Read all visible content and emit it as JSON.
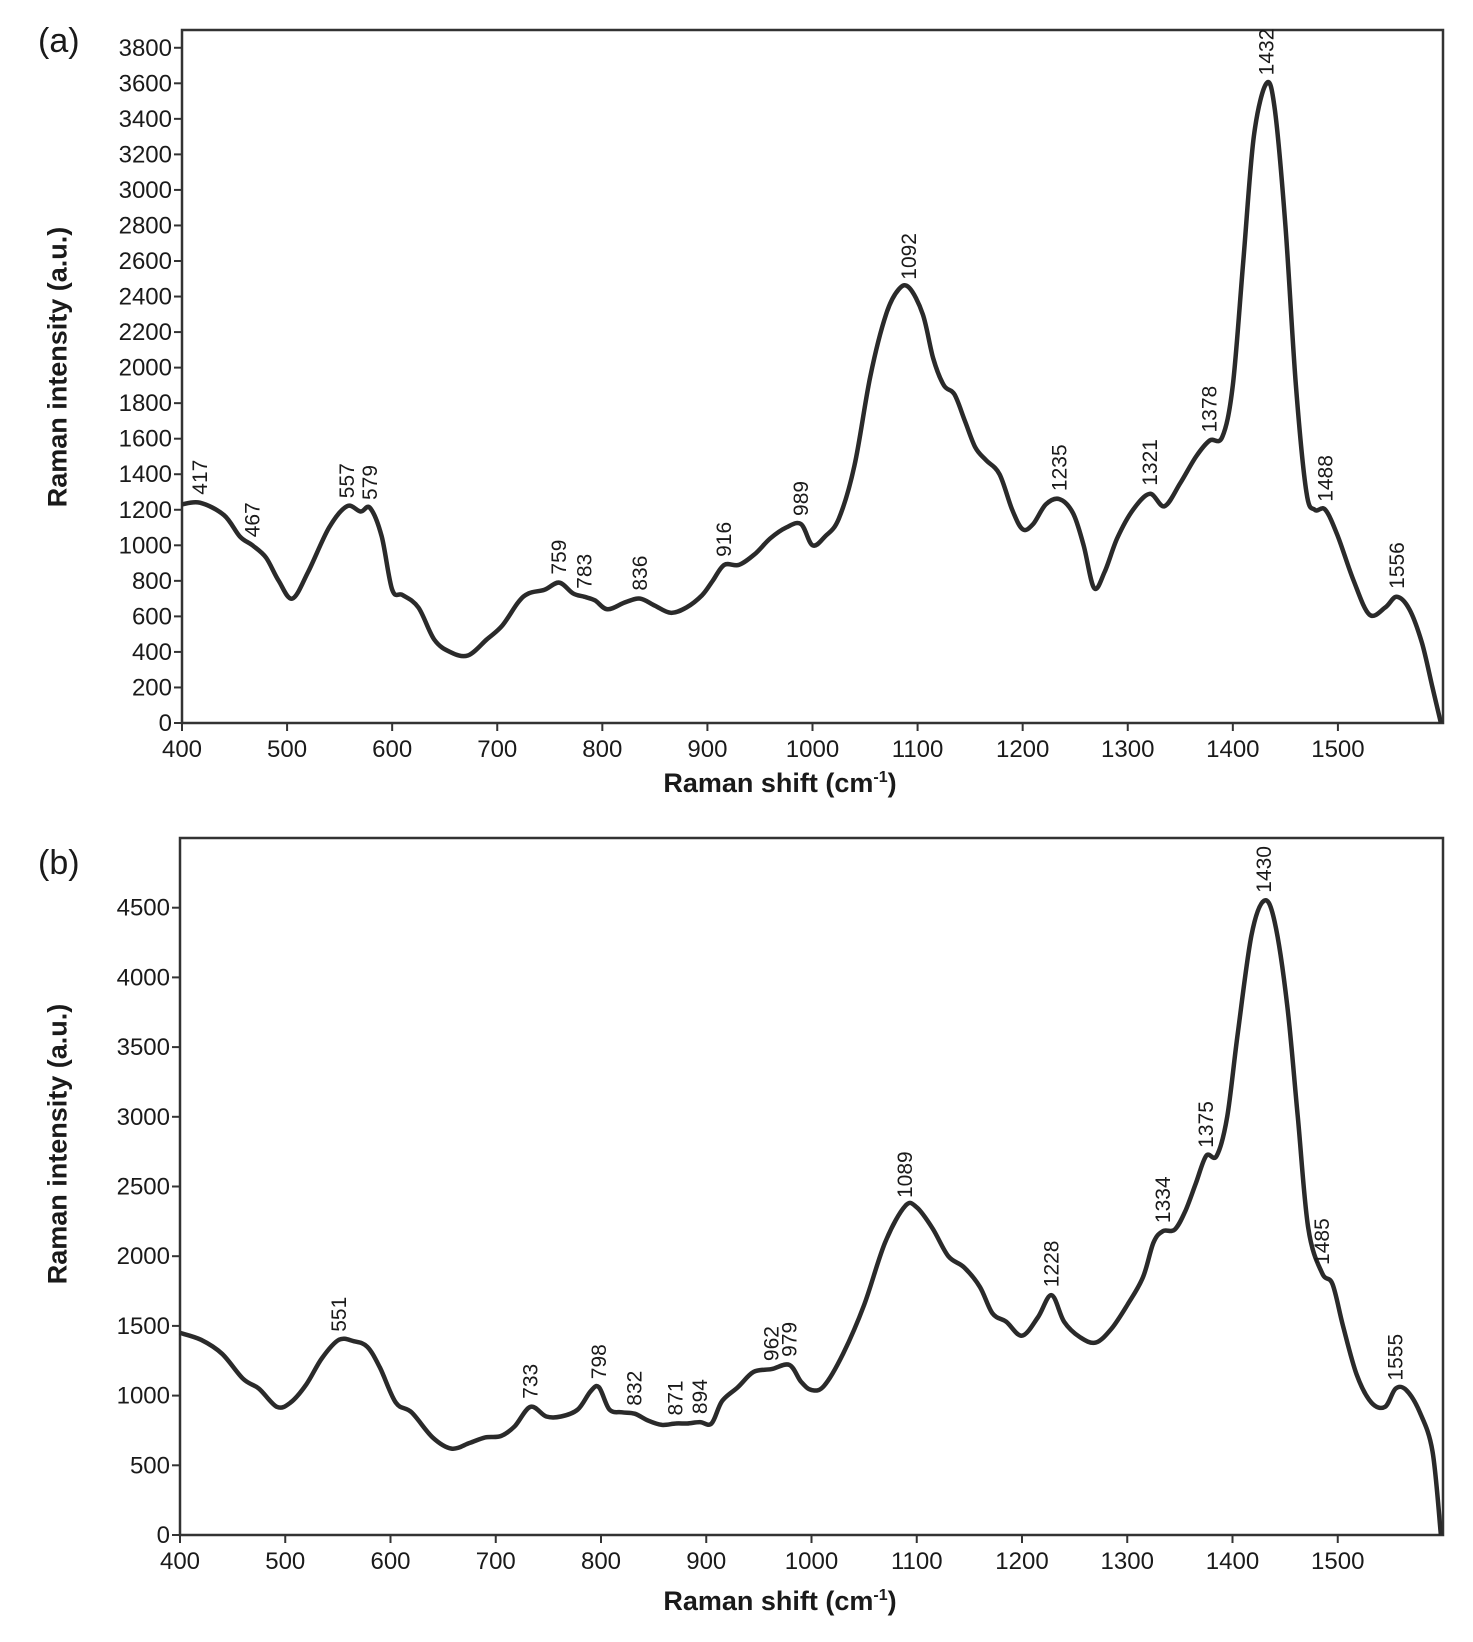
{
  "chart_data": [
    {
      "panel": "(a)",
      "type": "line",
      "xlabel": "Raman shift (cm-1)",
      "xlabel_base": "Raman shift (cm",
      "xlabel_sup": "-1",
      "xlabel_end": ")",
      "ylabel": "Raman intensity (a.u.)",
      "xlim": [
        400,
        1600
      ],
      "ylim": [
        0,
        3900
      ],
      "xticks": [
        400,
        500,
        600,
        700,
        800,
        900,
        1000,
        1100,
        1200,
        1300,
        1400,
        1500
      ],
      "yticks": [
        0,
        200,
        400,
        600,
        800,
        1000,
        1200,
        1400,
        1600,
        1800,
        2000,
        2200,
        2400,
        2600,
        2800,
        3000,
        3200,
        3400,
        3600,
        3800
      ],
      "series": [
        {
          "x": [
            400,
            417,
            440,
            455,
            467,
            480,
            492,
            505,
            520,
            540,
            557,
            570,
            579,
            590,
            600,
            610,
            625,
            640,
            655,
            672,
            690,
            705,
            720,
            730,
            745,
            759,
            772,
            783,
            793,
            805,
            822,
            836,
            850,
            865,
            880,
            895,
            905,
            916,
            930,
            945,
            960,
            975,
            989,
            1000,
            1012,
            1025,
            1040,
            1055,
            1070,
            1082,
            1092,
            1105,
            1115,
            1125,
            1135,
            1145,
            1155,
            1165,
            1178,
            1190,
            1200,
            1210,
            1222,
            1235,
            1248,
            1258,
            1268,
            1278,
            1290,
            1305,
            1321,
            1335,
            1350,
            1365,
            1378,
            1390,
            1400,
            1410,
            1420,
            1432,
            1440,
            1450,
            1460,
            1470,
            1478,
            1488,
            1500,
            1515,
            1530,
            1545,
            1556,
            1568,
            1580,
            1590,
            1598
          ],
          "y": [
            1230,
            1240,
            1170,
            1050,
            1000,
            930,
            800,
            700,
            850,
            1100,
            1220,
            1190,
            1210,
            1050,
            750,
            720,
            650,
            470,
            400,
            380,
            470,
            550,
            680,
            730,
            750,
            790,
            730,
            710,
            690,
            640,
            680,
            700,
            660,
            620,
            650,
            720,
            800,
            890,
            890,
            950,
            1040,
            1100,
            1120,
            1000,
            1050,
            1150,
            1450,
            1950,
            2300,
            2440,
            2450,
            2300,
            2050,
            1900,
            1850,
            1700,
            1550,
            1480,
            1400,
            1200,
            1090,
            1120,
            1230,
            1260,
            1180,
            1000,
            760,
            850,
            1040,
            1200,
            1290,
            1220,
            1350,
            1500,
            1590,
            1610,
            1900,
            2600,
            3300,
            3600,
            3450,
            2800,
            1900,
            1300,
            1200,
            1200,
            1050,
            800,
            610,
            650,
            710,
            640,
            450,
            200,
            0
          ]
        }
      ],
      "peak_labels": [
        {
          "x": 417,
          "y": 1240,
          "label": "417"
        },
        {
          "x": 467,
          "y": 1000,
          "label": "467"
        },
        {
          "x": 557,
          "y": 1220,
          "label": "557"
        },
        {
          "x": 579,
          "y": 1210,
          "label": "579"
        },
        {
          "x": 759,
          "y": 790,
          "label": "759"
        },
        {
          "x": 783,
          "y": 710,
          "label": "783"
        },
        {
          "x": 836,
          "y": 700,
          "label": "836"
        },
        {
          "x": 916,
          "y": 890,
          "label": "916"
        },
        {
          "x": 989,
          "y": 1120,
          "label": "989"
        },
        {
          "x": 1092,
          "y": 2450,
          "label": "1092"
        },
        {
          "x": 1235,
          "y": 1260,
          "label": "1235"
        },
        {
          "x": 1321,
          "y": 1290,
          "label": "1321"
        },
        {
          "x": 1378,
          "y": 1590,
          "label": "1378"
        },
        {
          "x": 1432,
          "y": 3600,
          "label": "1432"
        },
        {
          "x": 1488,
          "y": 1200,
          "label": "1488"
        },
        {
          "x": 1556,
          "y": 710,
          "label": "1556"
        }
      ]
    },
    {
      "panel": "(b)",
      "type": "line",
      "xlabel": "Raman shift (cm-1)",
      "xlabel_base": "Raman shift (cm",
      "xlabel_sup": "-1",
      "xlabel_end": ")",
      "ylabel": "Raman intensity (a.u.)",
      "xlim": [
        400,
        1600
      ],
      "ylim": [
        0,
        5000
      ],
      "xticks": [
        400,
        500,
        600,
        700,
        800,
        900,
        1000,
        1100,
        1200,
        1300,
        1400,
        1500
      ],
      "yticks": [
        0,
        500,
        1000,
        1500,
        2000,
        2500,
        3000,
        3500,
        4000,
        4500
      ],
      "series": [
        {
          "x": [
            400,
            420,
            440,
            460,
            475,
            492,
            505,
            520,
            535,
            551,
            565,
            578,
            590,
            605,
            620,
            640,
            658,
            675,
            690,
            705,
            718,
            733,
            748,
            762,
            778,
            790,
            798,
            808,
            820,
            832,
            845,
            858,
            871,
            882,
            894,
            905,
            915,
            930,
            945,
            962,
            979,
            990,
            1000,
            1012,
            1030,
            1050,
            1070,
            1089,
            1100,
            1115,
            1130,
            1145,
            1160,
            1172,
            1185,
            1200,
            1215,
            1228,
            1240,
            1255,
            1270,
            1285,
            1300,
            1315,
            1325,
            1334,
            1345,
            1355,
            1365,
            1375,
            1385,
            1395,
            1405,
            1418,
            1430,
            1440,
            1452,
            1462,
            1472,
            1485,
            1495,
            1505,
            1518,
            1532,
            1545,
            1555,
            1565,
            1578,
            1590,
            1598
          ],
          "y": [
            1450,
            1400,
            1300,
            1120,
            1050,
            920,
            950,
            1080,
            1270,
            1400,
            1390,
            1350,
            1200,
            950,
            880,
            700,
            620,
            660,
            700,
            710,
            780,
            920,
            850,
            850,
            900,
            1030,
            1060,
            900,
            880,
            870,
            820,
            790,
            800,
            800,
            810,
            800,
            960,
            1060,
            1170,
            1190,
            1220,
            1100,
            1040,
            1070,
            1300,
            1650,
            2100,
            2360,
            2350,
            2200,
            2000,
            1920,
            1780,
            1590,
            1530,
            1430,
            1560,
            1720,
            1530,
            1420,
            1380,
            1480,
            1650,
            1850,
            2100,
            2180,
            2190,
            2320,
            2520,
            2720,
            2720,
            3000,
            3600,
            4300,
            4550,
            4400,
            3800,
            3000,
            2200,
            1880,
            1800,
            1500,
            1150,
            950,
            920,
            1050,
            1040,
            880,
            600,
            0
          ]
        }
      ],
      "peak_labels": [
        {
          "x": 551,
          "y": 1400,
          "label": "551"
        },
        {
          "x": 733,
          "y": 920,
          "label": "733"
        },
        {
          "x": 798,
          "y": 1060,
          "label": "798"
        },
        {
          "x": 832,
          "y": 870,
          "label": "832"
        },
        {
          "x": 871,
          "y": 800,
          "label": "871"
        },
        {
          "x": 894,
          "y": 810,
          "label": "894"
        },
        {
          "x": 962,
          "y": 1190,
          "label": "962"
        },
        {
          "x": 979,
          "y": 1220,
          "label": "979"
        },
        {
          "x": 1089,
          "y": 2360,
          "label": "1089"
        },
        {
          "x": 1228,
          "y": 1720,
          "label": "1228"
        },
        {
          "x": 1334,
          "y": 2180,
          "label": "1334"
        },
        {
          "x": 1375,
          "y": 2720,
          "label": "1375"
        },
        {
          "x": 1430,
          "y": 4550,
          "label": "1430"
        },
        {
          "x": 1485,
          "y": 1880,
          "label": "1485"
        },
        {
          "x": 1555,
          "y": 1050,
          "label": "1555"
        }
      ]
    }
  ]
}
